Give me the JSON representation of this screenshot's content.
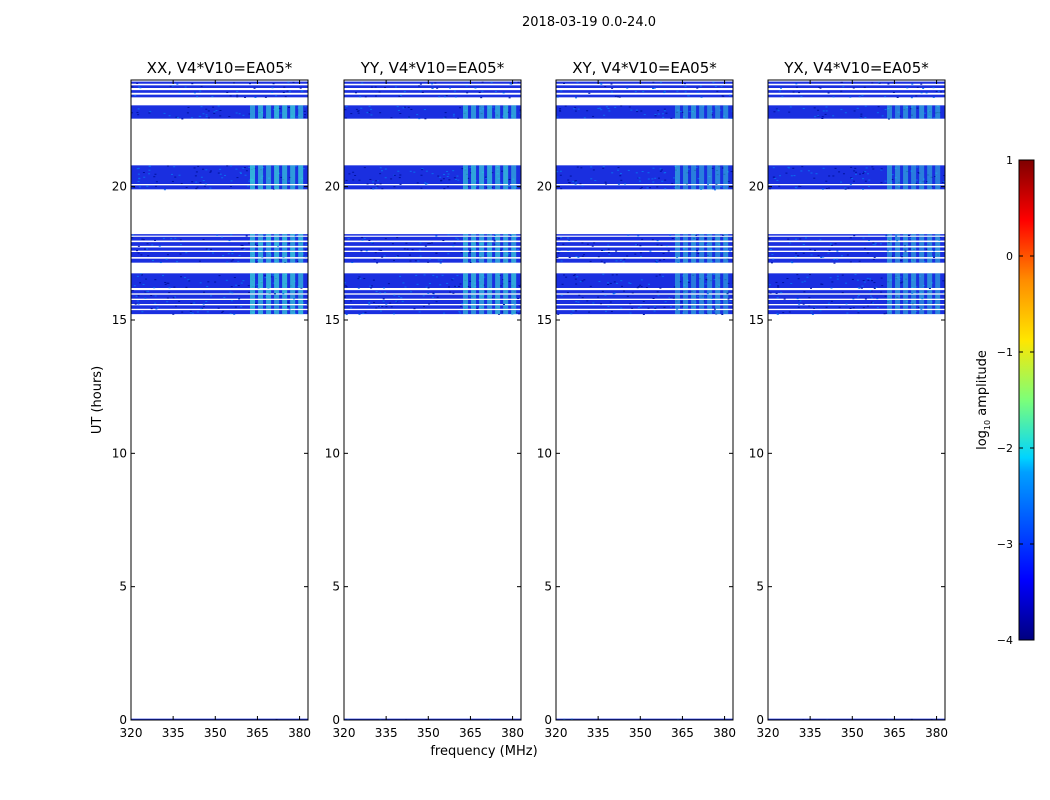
{
  "figure": {
    "suptitle": "2018-03-19 0.0-24.0",
    "xlabel": "frequency (MHz)",
    "ylabel": "UT (hours)"
  },
  "chart_data": {
    "type": "heatmap",
    "xlim": [
      320,
      383
    ],
    "ylim": [
      0,
      24
    ],
    "xticks": [
      320,
      335,
      350,
      365,
      380
    ],
    "xtick_labels": [
      "320",
      "335",
      "350",
      "365",
      "380"
    ],
    "yticks": [
      0,
      5,
      10,
      15,
      20
    ],
    "ytick_labels": [
      "0",
      "5",
      "10",
      "15",
      "20"
    ],
    "data_bands_ut_hours": [
      [
        0.0,
        0.05
      ],
      [
        15.22,
        15.37
      ],
      [
        15.42,
        15.55
      ],
      [
        15.6,
        15.75
      ],
      [
        15.8,
        15.95
      ],
      [
        16.0,
        16.12
      ],
      [
        16.2,
        16.75
      ],
      [
        17.15,
        17.3
      ],
      [
        17.36,
        17.55
      ],
      [
        17.6,
        17.72
      ],
      [
        17.78,
        17.92
      ],
      [
        17.98,
        18.12
      ],
      [
        18.18,
        18.22
      ],
      [
        19.9,
        20.05
      ],
      [
        20.1,
        20.8
      ],
      [
        22.55,
        23.05
      ],
      [
        23.35,
        23.45
      ],
      [
        23.52,
        23.62
      ],
      [
        23.7,
        23.8
      ],
      [
        23.86,
        23.94
      ]
    ],
    "bright_region_mhz": [
      362,
      382
    ],
    "panels": [
      {
        "title": "XX, V4*V10=EA05*",
        "bright_level": 1.0
      },
      {
        "title": "YY, V4*V10=EA05*",
        "bright_level": 0.9
      },
      {
        "title": "XY, V4*V10=EA05*",
        "bright_level": 0.6
      },
      {
        "title": "YX, V4*V10=EA05*",
        "bright_level": 0.6
      }
    ],
    "colorbar": {
      "label_prefix": "log",
      "label_sub": "10",
      "label_suffix": " amplitude",
      "range": [
        -4,
        1
      ],
      "ticks": [
        1,
        0,
        -1,
        -2,
        -3,
        -4
      ],
      "tick_labels": [
        "1",
        "0",
        "−1",
        "−2",
        "−3",
        "−4"
      ],
      "colormap": "jet"
    }
  },
  "colors": {
    "base": "#1a2fe0",
    "dark": "#0012a0",
    "mid": "#0a6cf0",
    "bright": "#3ee8d8"
  }
}
